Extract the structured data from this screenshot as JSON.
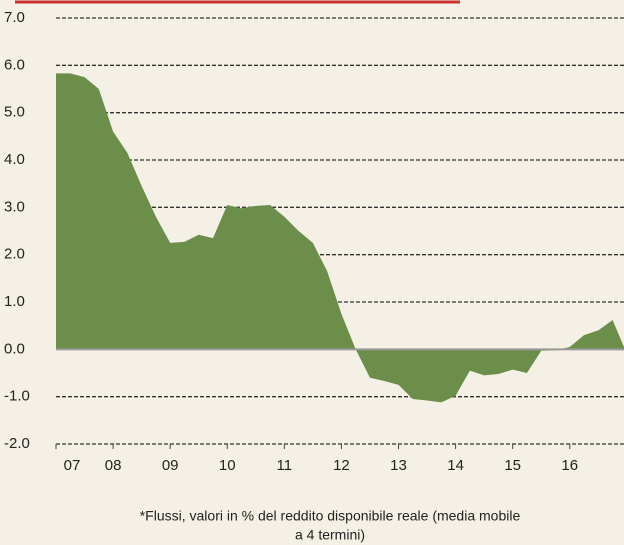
{
  "chart_data": {
    "type": "area",
    "color": "#6b8e4a",
    "x": [
      7,
      7.25,
      7.5,
      7.75,
      8,
      8.25,
      8.5,
      8.75,
      9,
      9.25,
      9.5,
      9.75,
      10,
      10.25,
      10.5,
      10.75,
      11,
      11.25,
      11.5,
      11.75,
      12,
      12.25,
      12.5,
      12.75,
      13,
      13.25,
      13.5,
      13.75,
      14,
      14.25,
      14.5,
      14.75,
      15,
      15.25,
      15.5,
      15.75,
      16,
      16.25,
      16.5,
      16.75,
      16.95
    ],
    "values": [
      5.83,
      5.83,
      5.75,
      5.5,
      4.6,
      4.15,
      3.45,
      2.8,
      2.25,
      2.27,
      2.42,
      2.35,
      3.05,
      2.98,
      3.03,
      3.05,
      2.8,
      2.5,
      2.25,
      1.65,
      0.75,
      0.0,
      -0.6,
      -0.67,
      -0.75,
      -1.05,
      -1.08,
      -1.12,
      -0.98,
      -0.45,
      -0.55,
      -0.52,
      -0.43,
      -0.5,
      -0.03,
      -0.02,
      0.05,
      0.3,
      0.4,
      0.62,
      0.05
    ],
    "xlim": [
      7,
      16.95
    ],
    "xticks": [
      {
        "value": 7,
        "label": "07"
      },
      {
        "value": 8,
        "label": "08"
      },
      {
        "value": 9,
        "label": "09"
      },
      {
        "value": 10,
        "label": "10"
      },
      {
        "value": 11,
        "label": "11"
      },
      {
        "value": 12,
        "label": "12"
      },
      {
        "value": 13,
        "label": "13"
      },
      {
        "value": 14,
        "label": "14"
      },
      {
        "value": 15,
        "label": "15"
      },
      {
        "value": 16,
        "label": "16"
      }
    ],
    "ylim": [
      -2,
      7
    ],
    "yticks": [
      {
        "value": -2,
        "label": "-2.0"
      },
      {
        "value": -1,
        "label": "-1.0"
      },
      {
        "value": 0,
        "label": "0.0"
      },
      {
        "value": 1,
        "label": "1.0"
      },
      {
        "value": 2,
        "label": "2.0"
      },
      {
        "value": 3,
        "label": "3.0"
      },
      {
        "value": 4,
        "label": "4.0"
      },
      {
        "value": 5,
        "label": "5.0"
      },
      {
        "value": 6,
        "label": "6.0"
      },
      {
        "value": 7,
        "label": "7.0"
      }
    ],
    "grid": true,
    "note": [
      "*Flussi, valori in % del reddito disponibile reale (media mobile",
      "a 4 termini)"
    ]
  }
}
